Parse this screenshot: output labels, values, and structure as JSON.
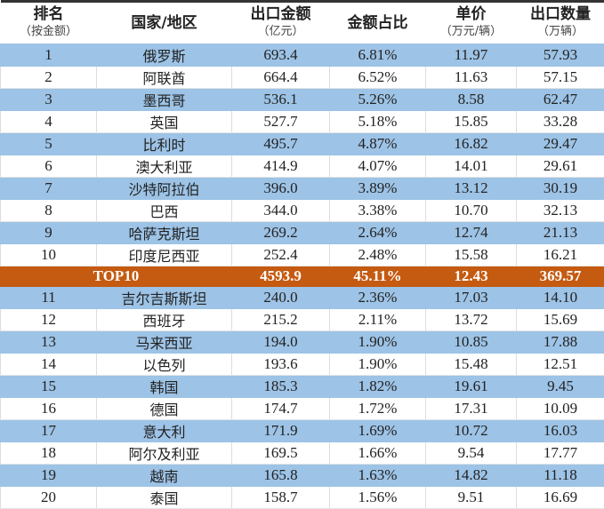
{
  "chart_data": {
    "type": "table",
    "headers": [
      {
        "title": "排名",
        "sub": "（按金额）"
      },
      {
        "title": "国家/地区",
        "sub": ""
      },
      {
        "title": "出口金额",
        "sub": "（亿元）"
      },
      {
        "title": "金额占比",
        "sub": ""
      },
      {
        "title": "单价",
        "sub": "（万元/辆）"
      },
      {
        "title": "出口数量",
        "sub": "（万辆）"
      }
    ],
    "rows": [
      [
        "1",
        "俄罗斯",
        "693.4",
        "6.81%",
        "11.97",
        "57.93"
      ],
      [
        "2",
        "阿联酋",
        "664.4",
        "6.52%",
        "11.63",
        "57.15"
      ],
      [
        "3",
        "墨西哥",
        "536.1",
        "5.26%",
        "8.58",
        "62.47"
      ],
      [
        "4",
        "英国",
        "527.7",
        "5.18%",
        "15.85",
        "33.28"
      ],
      [
        "5",
        "比利时",
        "495.7",
        "4.87%",
        "16.82",
        "29.47"
      ],
      [
        "6",
        "澳大利亚",
        "414.9",
        "4.07%",
        "14.01",
        "29.61"
      ],
      [
        "7",
        "沙特阿拉伯",
        "396.0",
        "3.89%",
        "13.12",
        "30.19"
      ],
      [
        "8",
        "巴西",
        "344.0",
        "3.38%",
        "10.70",
        "32.13"
      ],
      [
        "9",
        "哈萨克斯坦",
        "269.2",
        "2.64%",
        "12.74",
        "21.13"
      ],
      [
        "10",
        "印度尼西亚",
        "252.4",
        "2.48%",
        "15.58",
        "16.21"
      ],
      [
        "",
        "TOP10",
        "4593.9",
        "45.11%",
        "12.43",
        "369.57"
      ],
      [
        "11",
        "吉尔吉斯斯坦",
        "240.0",
        "2.36%",
        "17.03",
        "14.10"
      ],
      [
        "12",
        "西班牙",
        "215.2",
        "2.11%",
        "13.72",
        "15.69"
      ],
      [
        "13",
        "马来西亚",
        "194.0",
        "1.90%",
        "10.85",
        "17.88"
      ],
      [
        "14",
        "以色列",
        "193.6",
        "1.90%",
        "15.48",
        "12.51"
      ],
      [
        "15",
        "韩国",
        "185.3",
        "1.82%",
        "19.61",
        "9.45"
      ],
      [
        "16",
        "德国",
        "174.7",
        "1.72%",
        "17.31",
        "10.09"
      ],
      [
        "17",
        "意大利",
        "171.9",
        "1.69%",
        "10.72",
        "16.03"
      ],
      [
        "18",
        "阿尔及利亚",
        "169.5",
        "1.66%",
        "9.54",
        "17.77"
      ],
      [
        "19",
        "越南",
        "165.8",
        "1.63%",
        "14.82",
        "11.18"
      ],
      [
        "20",
        "泰国",
        "158.7",
        "1.56%",
        "9.51",
        "16.69"
      ]
    ],
    "colors": {
      "band": "#9dc3e6",
      "highlight": "#c55a11"
    }
  }
}
